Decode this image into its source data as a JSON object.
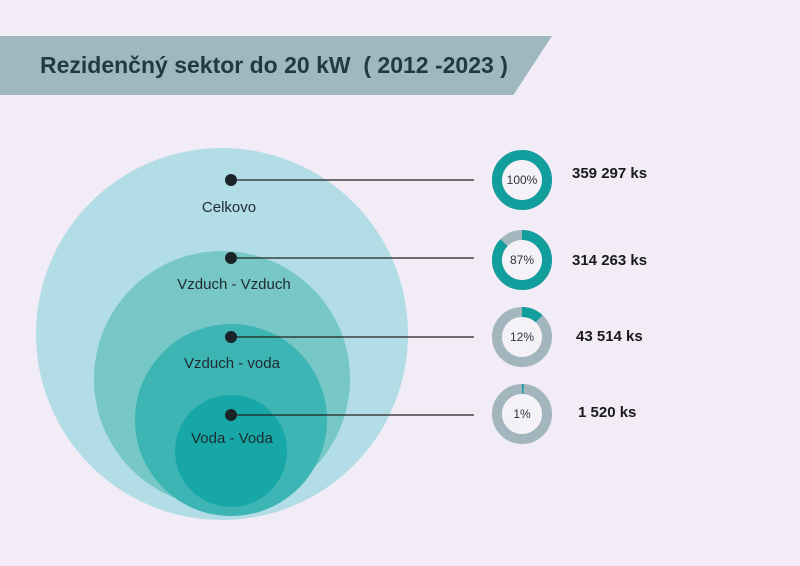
{
  "header": {
    "title": "Rezidenčný sektor do 20 kW  ( 2012 -2023 )"
  },
  "colors": {
    "background": "#f1ecf5",
    "banner": "#9fb7bf",
    "circles": [
      "#b2dde6",
      "#77c7c7",
      "#3db5b4",
      "#16a7a6"
    ],
    "donut_fill": "#139e9e",
    "donut_track": "#a3b5bd"
  },
  "chart_data": {
    "type": "nested-circles-with-donuts",
    "title": "Rezidenčný sektor do 20 kW  ( 2012 -2023 )",
    "series": [
      {
        "name": "Celkovo",
        "percent": 100,
        "percent_label": "100%",
        "count": 359297,
        "count_label": "359 297 ks"
      },
      {
        "name": "Vzduch - Vzduch",
        "percent": 87,
        "percent_label": "87%",
        "count": 314263,
        "count_label": "314 263 ks"
      },
      {
        "name": "Vzduch - voda",
        "percent": 12,
        "percent_label": "12%",
        "count": 43514,
        "count_label": "43 514 ks"
      },
      {
        "name": "Voda - Voda",
        "percent": 1,
        "percent_label": "1%",
        "count": 1520,
        "count_label": "1 520 ks"
      }
    ]
  }
}
